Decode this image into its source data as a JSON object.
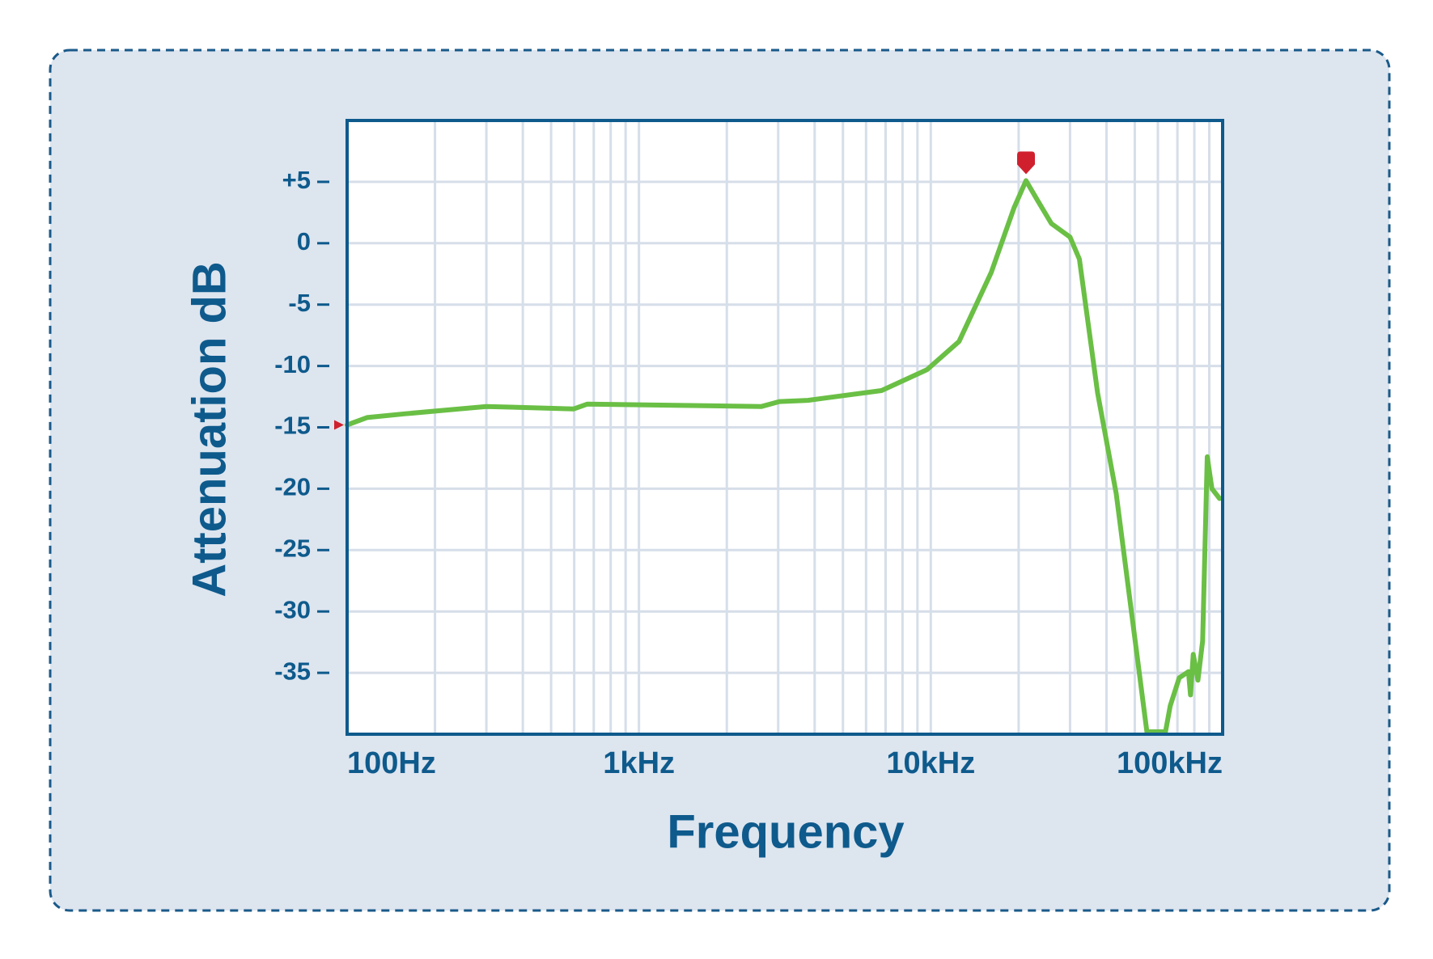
{
  "chart_data": {
    "type": "line",
    "x_label": "Frequency",
    "y_label": "Attenuation dB",
    "x": [
      100,
      117,
      157,
      300,
      598,
      666,
      2630,
      3030,
      3790,
      6780,
      9700,
      12500,
      16100,
      19300,
      21200,
      23200,
      25900,
      30000,
      32300,
      37300,
      43200,
      55000,
      63700,
      66100,
      71000,
      76400,
      77600,
      79300,
      82300,
      85400,
      88600,
      91900,
      97600
    ],
    "values": [
      -14.8,
      -14.2,
      -13.9,
      -13.3,
      -13.5,
      -13.1,
      -13.3,
      -12.9,
      -12.8,
      -12.0,
      -10.3,
      -8.0,
      -2.4,
      2.9,
      5.1,
      3.5,
      1.6,
      0.5,
      -1.3,
      -12.2,
      -20.4,
      -39.8,
      -39.8,
      -37.7,
      -35.4,
      -34.9,
      -36.8,
      -33.5,
      -35.6,
      -32.4,
      -17.4,
      -20.0,
      -20.8
    ],
    "color": "#6abf45",
    "x_log": true,
    "xlim": [
      100,
      100000
    ],
    "xticks": [
      {
        "value": 100,
        "label": "100Hz"
      },
      {
        "value": 1000,
        "label": "1kHz"
      },
      {
        "value": 10000,
        "label": "10kHz"
      },
      {
        "value": 100000,
        "label": "100kHz"
      }
    ],
    "ylim": [
      -40,
      10
    ],
    "yticks": [
      {
        "value": 5,
        "label": "+5"
      },
      0,
      -5,
      -10,
      -15,
      -20,
      -25,
      -30,
      -35
    ],
    "grid": true,
    "minor_grid": true,
    "peak_marker": {
      "x": 21200,
      "y": 5.1,
      "color": "#d0202e"
    },
    "y_axis_marker": {
      "y": -14.8,
      "color": "#d0202e"
    }
  }
}
